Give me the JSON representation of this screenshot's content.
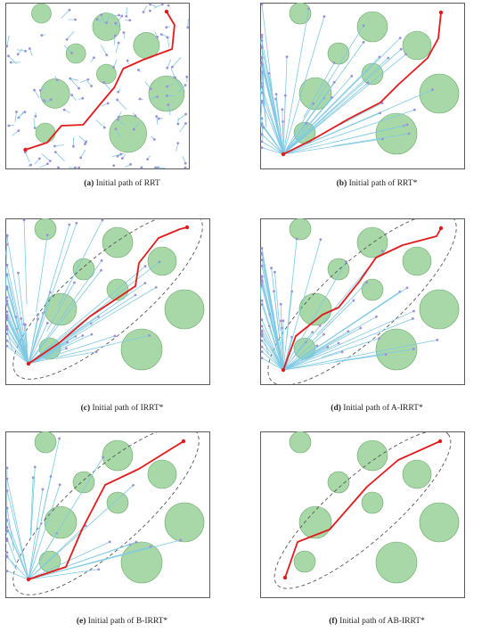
{
  "figure": {
    "colors": {
      "obstacle_fill": "#a8d8a8",
      "obstacle_stroke": "#6aa86a",
      "tree": "#7ec8e3",
      "node": "#9b8fd6",
      "path": "#e31a1c",
      "ellipse": "#555555",
      "frame": "#333333"
    },
    "panels": [
      {
        "id": "a",
        "label": "(a)",
        "caption": "Initial path of RRT"
      },
      {
        "id": "b",
        "label": "(b)",
        "caption": "Initial path of RRT*"
      },
      {
        "id": "c",
        "label": "(c)",
        "caption": "Initial path of IRRT*"
      },
      {
        "id": "d",
        "label": "(d)",
        "caption": "Initial path of A-IRRT*"
      },
      {
        "id": "e",
        "label": "(e)",
        "caption": "Initial path of B-IRRT*"
      },
      {
        "id": "f",
        "label": "(f)",
        "caption": "Initial path of AB-IRRT*"
      }
    ]
  }
}
